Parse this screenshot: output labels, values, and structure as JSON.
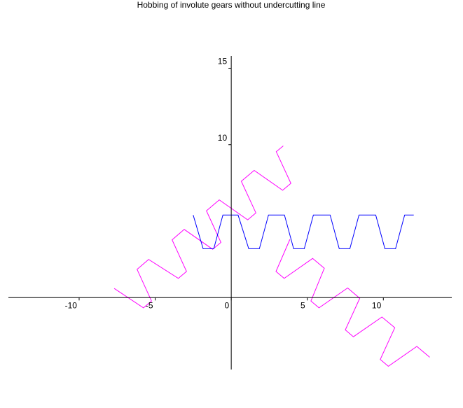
{
  "chart_data": {
    "type": "line",
    "title": "Hobbing of involute gears without undercutting line",
    "xlim": [
      -14.65,
      14.5
    ],
    "ylim": [
      -4.7,
      15.8
    ],
    "xticks": [
      -10,
      -5,
      0,
      5,
      10
    ],
    "yticks": [
      10,
      15
    ],
    "series": [
      {
        "color": "#ff00ff",
        "x": [
          -7.69,
          -5.77,
          -5.24,
          -6.19,
          -5.43,
          -3.48,
          -2.94,
          -3.89,
          -3.09,
          -1.22,
          -0.68,
          -1.63,
          -0.79,
          1.08,
          1.62,
          0.66,
          1.51,
          3.38,
          3.92,
          2.96,
          3.42
        ],
        "y": [
          0.6,
          -0.67,
          -0.22,
          1.85,
          2.5,
          1.26,
          1.71,
          3.78,
          4.46,
          3.16,
          3.61,
          5.68,
          6.39,
          5.09,
          5.54,
          7.61,
          8.32,
          7.02,
          7.47,
          9.54,
          9.92
        ]
      },
      {
        "color": "#ff00ff",
        "x": [
          3.86,
          2.94,
          3.48,
          5.35,
          6.12,
          5.24,
          5.77,
          7.65,
          8.45,
          7.5,
          8.03,
          9.91,
          10.75,
          9.8,
          10.33,
          12.2,
          13.05
        ],
        "y": [
          3.81,
          1.71,
          1.26,
          2.56,
          1.92,
          -0.22,
          -0.67,
          0.63,
          -0.04,
          -2.11,
          -2.56,
          -1.27,
          -1.97,
          -4.04,
          -4.49,
          -3.19,
          -3.9
        ]
      },
      {
        "color": "#0000ff",
        "x": [
          -2.5,
          -1.85,
          -1.15,
          -0.55,
          0.45,
          1.15,
          1.85,
          2.45,
          3.5,
          4.1,
          4.8,
          5.4,
          6.5,
          7.1,
          7.8,
          8.4,
          9.5,
          10.1,
          10.8,
          11.4,
          12
        ],
        "y": [
          5.4,
          3.2,
          3.2,
          5.4,
          5.4,
          3.2,
          3.2,
          5.4,
          5.4,
          3.2,
          3.2,
          5.4,
          5.4,
          3.2,
          3.2,
          5.4,
          5.4,
          3.2,
          3.2,
          5.4,
          5.4
        ]
      }
    ]
  }
}
